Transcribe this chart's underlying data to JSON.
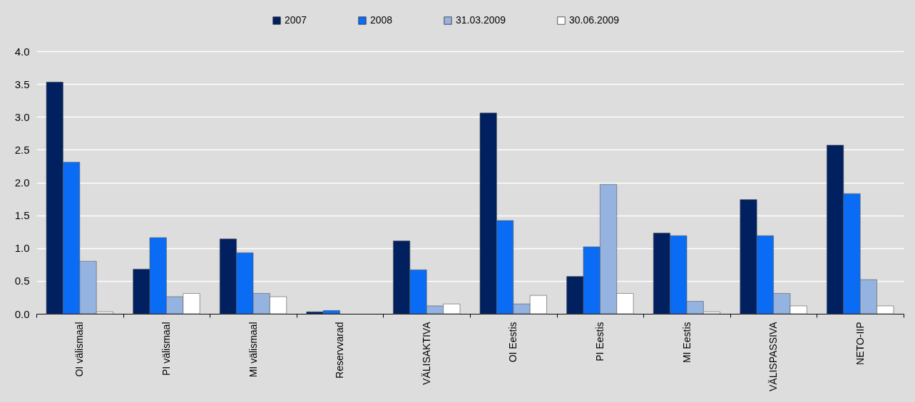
{
  "chart_data": {
    "type": "bar",
    "categories": [
      "OI välismaal",
      "PI välismaal",
      "MI välismaal",
      "Reservvarad",
      "VÄLISAKTIVA",
      "OI Eestis",
      "PI Eestis",
      "MI Eestis",
      "VÄLISPASSIVA",
      "NETO-IIP"
    ],
    "series": [
      {
        "name": "2007",
        "color": "#002060",
        "values": [
          3.53,
          0.68,
          1.14,
          0.03,
          1.11,
          3.06,
          0.57,
          1.23,
          1.74,
          2.57
        ]
      },
      {
        "name": "2008",
        "color": "#0a6cf5",
        "values": [
          2.31,
          1.16,
          0.93,
          0.05,
          0.67,
          1.42,
          1.02,
          1.19,
          1.19,
          1.83
        ]
      },
      {
        "name": "31.03.2009",
        "color": "#95b3e0",
        "values": [
          0.8,
          0.26,
          0.31,
          0.0,
          0.12,
          0.15,
          1.97,
          0.19,
          0.31,
          0.52
        ]
      },
      {
        "name": "30.06.2009",
        "color": "#ffffff",
        "values": [
          0.03,
          0.31,
          0.26,
          0.0,
          0.15,
          0.28,
          0.31,
          0.03,
          0.12,
          0.12
        ]
      }
    ],
    "ylim": [
      0,
      4
    ],
    "yticks": [
      {
        "value": 0,
        "label": "0.0"
      },
      {
        "value": 0.5,
        "label": "0.5"
      },
      {
        "value": 1,
        "label": "1.0"
      },
      {
        "value": 1.5,
        "label": "1.5"
      },
      {
        "value": 2,
        "label": "2.0"
      },
      {
        "value": 2.5,
        "label": "2.5"
      },
      {
        "value": 3,
        "label": "3.0"
      },
      {
        "value": 3.5,
        "label": "3.5"
      },
      {
        "value": 4,
        "label": "4.0"
      }
    ],
    "grid": "y",
    "legend": "top"
  }
}
